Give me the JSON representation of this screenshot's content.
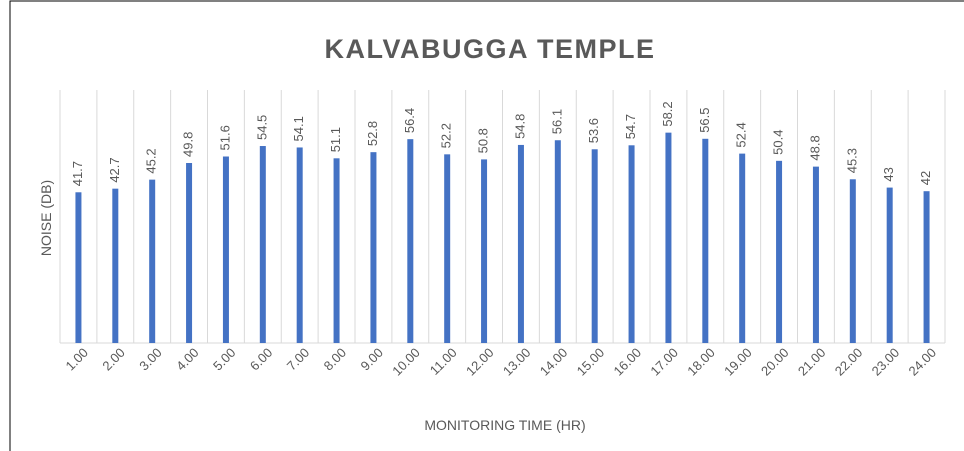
{
  "chart_data": {
    "type": "bar",
    "title": "KALVABUGGA TEMPLE",
    "x_label": "MONITORING TIME (HR)",
    "y_label": "NOISE (DB)",
    "categories": [
      "1.00",
      "2.00",
      "3.00",
      "4.00",
      "5.00",
      "6.00",
      "7.00",
      "8.00",
      "9.00",
      "10.00",
      "11.00",
      "12.00",
      "13.00",
      "14.00",
      "15.00",
      "16.00",
      "17.00",
      "18.00",
      "19.00",
      "20.00",
      "21.00",
      "22.00",
      "23.00",
      "24.00"
    ],
    "values": [
      41.7,
      42.7,
      45.2,
      49.8,
      51.6,
      54.5,
      54.1,
      51.1,
      52.8,
      56.4,
      52.2,
      50.8,
      54.8,
      56.1,
      53.6,
      54.7,
      58.2,
      56.5,
      52.4,
      50.4,
      48.8,
      45.3,
      43,
      42
    ],
    "color": "#4472c4",
    "ylim": [
      0,
      70
    ],
    "grid": true
  }
}
